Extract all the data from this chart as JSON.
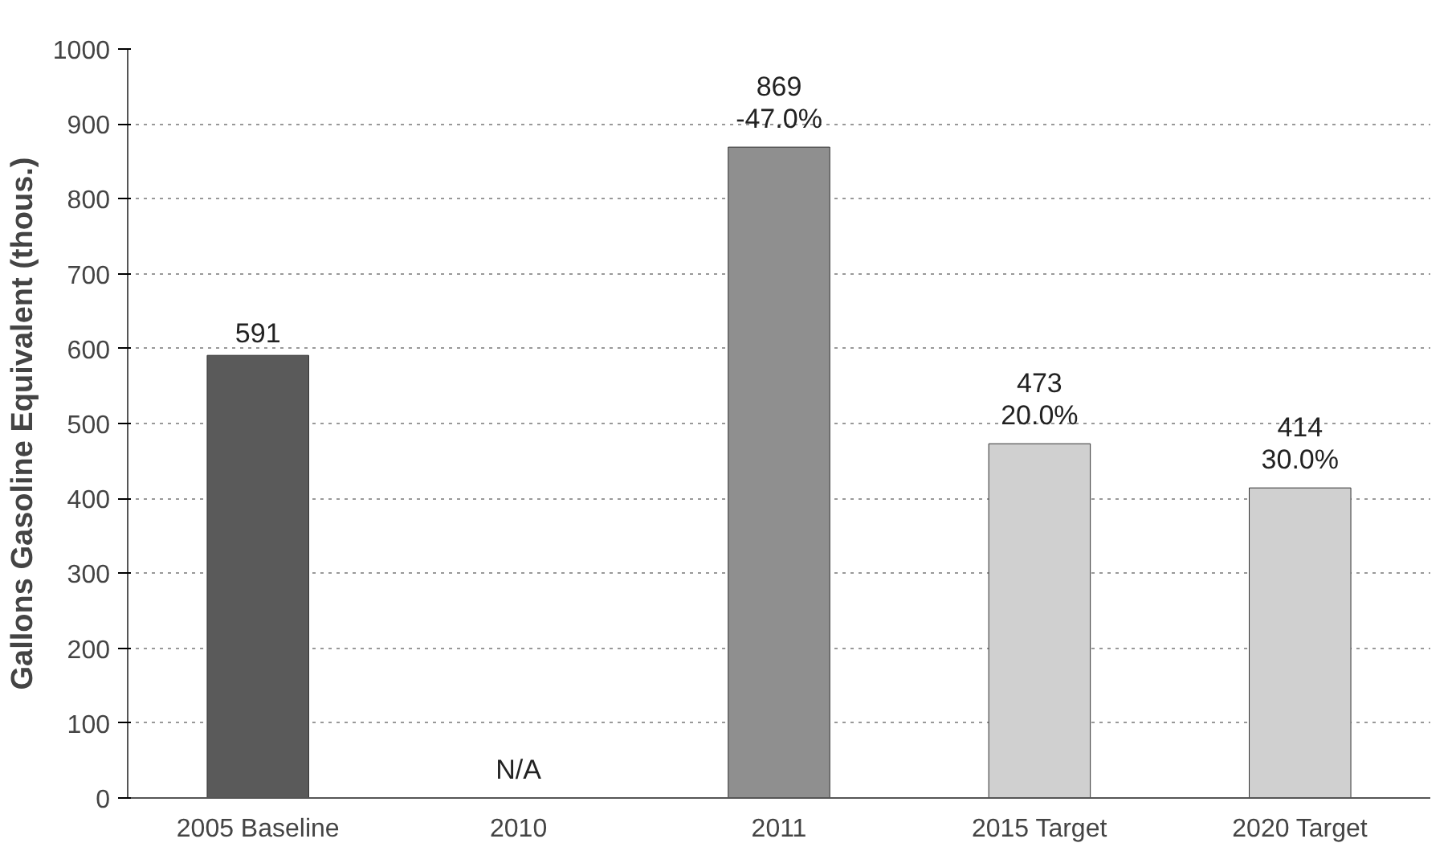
{
  "chart_data": {
    "type": "bar",
    "ylabel": "Gallons Gasoline Equivalent (thous.)",
    "categories": [
      "2005 Baseline",
      "2010",
      "2011",
      "2015 Target",
      "2020 Target"
    ],
    "values": [
      591,
      null,
      869,
      473,
      414
    ],
    "colors": [
      "#5a5a5a",
      "#8f8f8f",
      "#8f8f8f",
      "#d0d0d0",
      "#d0d0d0"
    ],
    "value_labels": [
      "591",
      "N/A",
      "869\n-47.0%",
      "473\n20.0%",
      "414\n30.0%"
    ],
    "ylim": [
      0,
      1000
    ],
    "yticks": [
      0,
      100,
      200,
      300,
      400,
      500,
      600,
      700,
      800,
      900,
      1000
    ],
    "grid": "y"
  }
}
